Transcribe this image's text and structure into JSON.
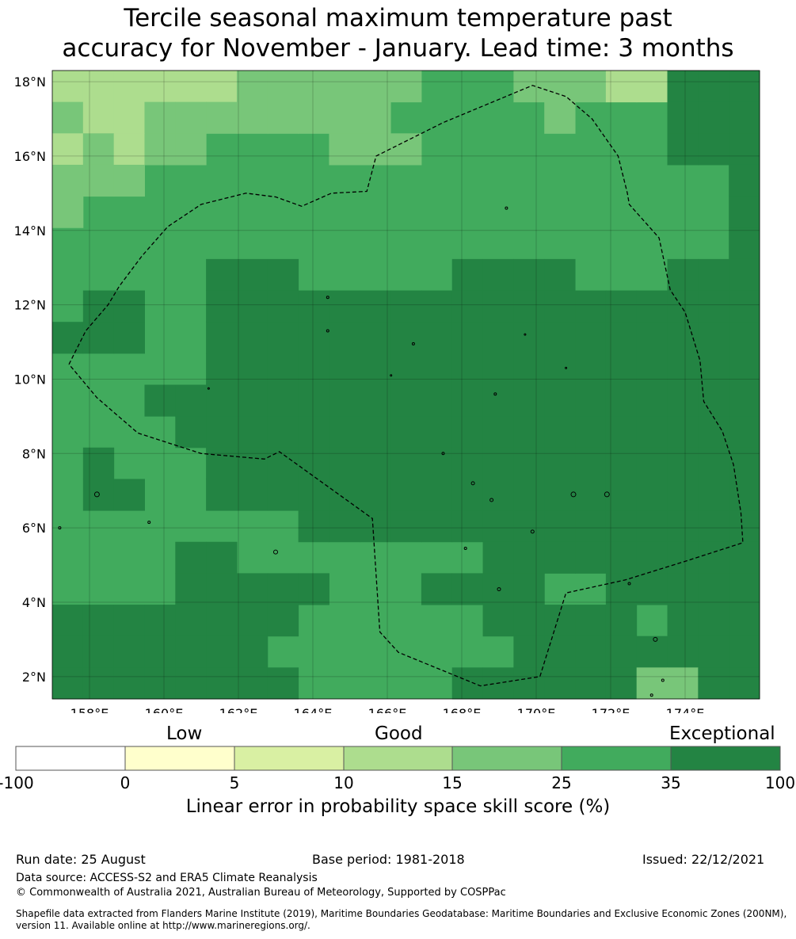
{
  "title": "Tercile seasonal maximum temperature past\naccuracy for November - January. Lead time: 3 months",
  "map": {
    "lon_range": [
      157.0,
      176.0
    ],
    "lat_range": [
      1.4,
      18.3
    ],
    "lon_ticks": [
      "158°E",
      "160°E",
      "162°E",
      "164°E",
      "166°E",
      "168°E",
      "170°E",
      "172°E",
      "174°E"
    ],
    "lat_ticks": [
      "18°N",
      "16°N",
      "14°N",
      "12°N",
      "10°N",
      "8°N",
      "6°N",
      "4°N",
      "2°N"
    ],
    "grid_cell_deg": 0.833,
    "category_colors": {
      "1": "#f6fbc1",
      "2": "#d9efa2",
      "3": "#addd8e",
      "4": "#78c679",
      "5": "#41ab5d",
      "6": "#238443"
    },
    "eez_boundary": "Marshall Islands EEZ (dashed)"
  },
  "colorbar": {
    "categories": [
      "Low",
      "Good",
      "Exceptional"
    ],
    "ticks": [
      "-100",
      "0",
      "5",
      "10",
      "15",
      "25",
      "35",
      "100"
    ],
    "colors": [
      "#ffffff",
      "#ffffcc",
      "#d9f0a3",
      "#addd8e",
      "#78c679",
      "#41ab5d",
      "#238443"
    ],
    "label": "Linear error in probability space skill score (%)"
  },
  "footer": {
    "run_date": "Run date: 25 August",
    "base_period": "Base period: 1981-2018",
    "issued": "Issued: 22/12/2021",
    "data_source": "Data source: ACCESS-S2 and ERA5 Climate Reanalysis",
    "copyright": "© Commonwealth of Australia 2021, Australian Bureau of Meteorology, Supported by COSPPac",
    "shapefile": "Shapefile data extracted from Flanders Marine Institute (2019), Maritime Boundaries Geodatabase: Maritime Boundaries and Exclusive Economic Zones (200NM), version 11. Available online at http://www.marineregions.org/."
  }
}
